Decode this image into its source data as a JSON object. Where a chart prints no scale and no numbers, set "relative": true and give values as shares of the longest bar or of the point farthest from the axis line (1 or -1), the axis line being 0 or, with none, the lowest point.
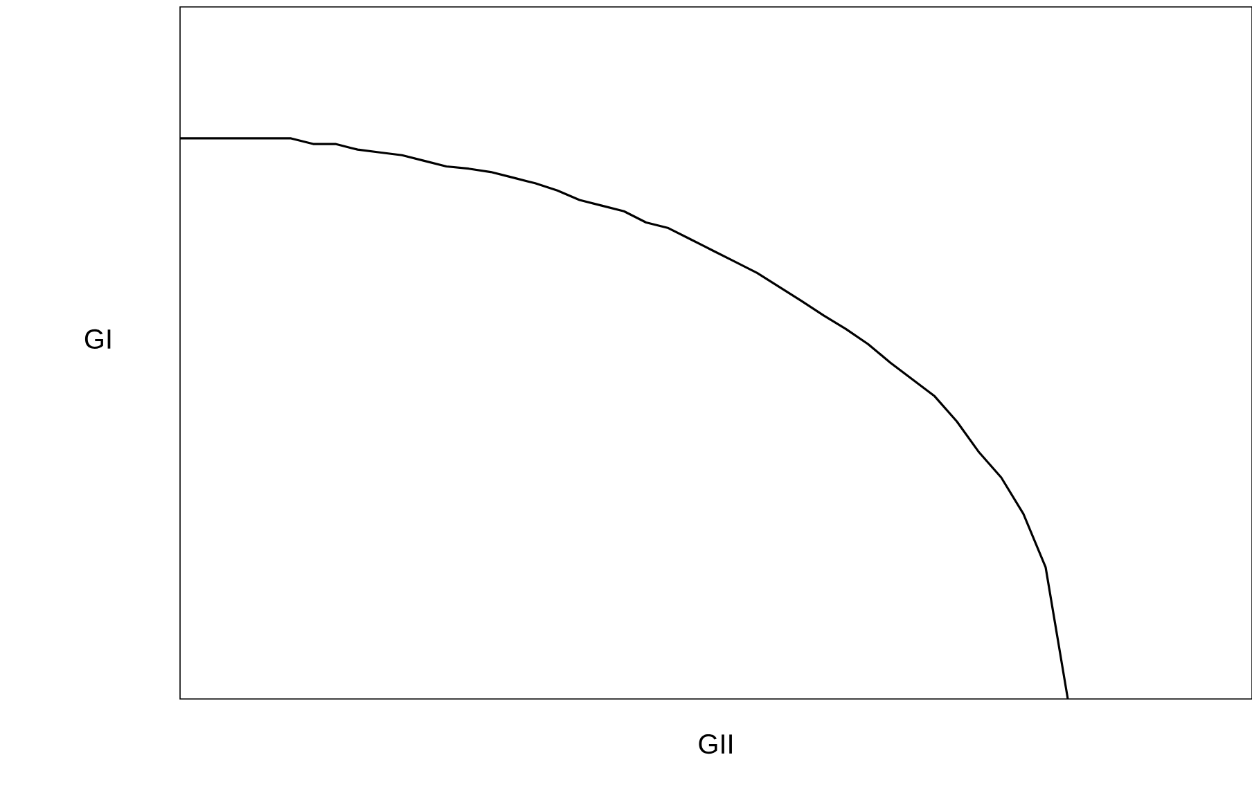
{
  "chart_data": {
    "type": "line",
    "relative": true,
    "xlabel": "GII",
    "ylabel": "GI",
    "categories": [
      null,
      null,
      null,
      null,
      null,
      null,
      null,
      null,
      null,
      null,
      null,
      null,
      null,
      null,
      null,
      null,
      null,
      null,
      null,
      null,
      null,
      null,
      null,
      null,
      null,
      null,
      null,
      null,
      null,
      null,
      null,
      null,
      null,
      null,
      null,
      null,
      null,
      null,
      null,
      null,
      null
    ],
    "series": [
      {
        "color": "#000000",
        "values": [
          1.0,
          1.0,
          1.0,
          1.0,
          1.0,
          1.0,
          0.99,
          0.99,
          0.98,
          0.975,
          0.97,
          0.96,
          0.95,
          0.946,
          0.94,
          0.93,
          0.92,
          0.907,
          0.89,
          0.88,
          0.87,
          0.85,
          0.84,
          0.82,
          0.8,
          0.78,
          0.76,
          0.735,
          0.71,
          0.684,
          0.66,
          0.633,
          0.6,
          0.57,
          0.54,
          0.495,
          0.44,
          0.395,
          0.33,
          0.235,
          0.0
        ]
      }
    ],
    "marker": "none",
    "line_style": "solid"
  }
}
